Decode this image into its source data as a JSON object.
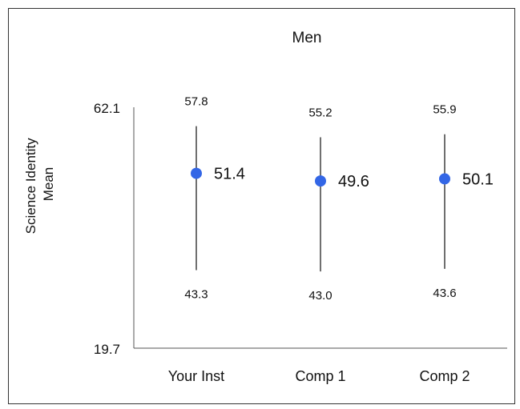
{
  "chart_data": {
    "type": "scatter",
    "title": "Men",
    "ylabel": "Science Identity\nMean",
    "xlabel": "",
    "ylim": [
      19.7,
      62.1
    ],
    "yticks": [
      "62.1",
      "19.7"
    ],
    "categories": [
      "Your Inst",
      "Comp 1",
      "Comp 2"
    ],
    "points": [
      {
        "category": "Your Inst",
        "mean": 51.4,
        "upper": 57.8,
        "lower": 43.3
      },
      {
        "category": "Comp 1",
        "mean": 49.6,
        "upper": 55.2,
        "lower": 43.0
      },
      {
        "category": "Comp 2",
        "mean": 50.1,
        "upper": 55.9,
        "lower": 43.6
      }
    ],
    "marker_color": "#3366e6",
    "errorbar_color": "#222222",
    "grid": false,
    "legend": "none"
  }
}
